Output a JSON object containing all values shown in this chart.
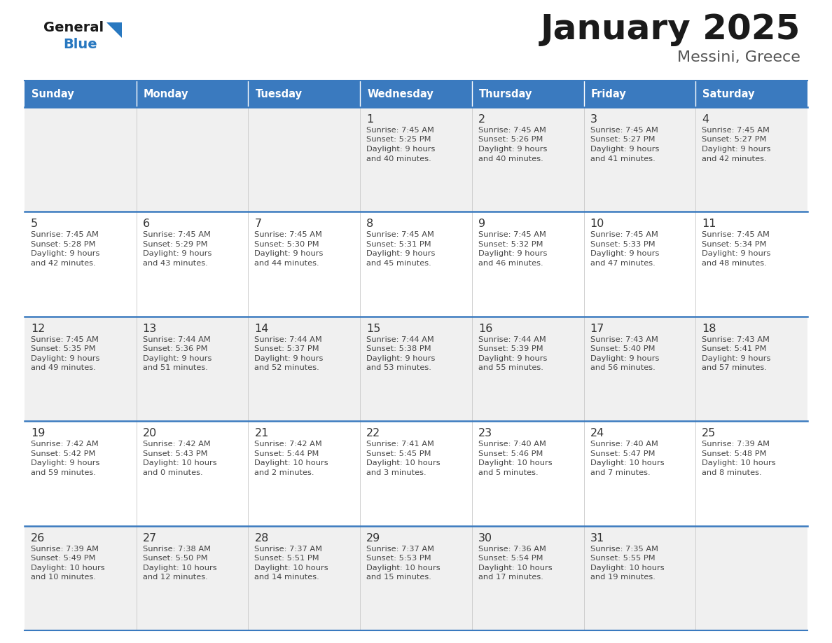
{
  "title": "January 2025",
  "subtitle": "Messini, Greece",
  "days_of_week": [
    "Sunday",
    "Monday",
    "Tuesday",
    "Wednesday",
    "Thursday",
    "Friday",
    "Saturday"
  ],
  "header_bg": "#3a7abf",
  "header_text": "#ffffff",
  "row_bg_even": "#f0f0f0",
  "row_bg_odd": "#ffffff",
  "cell_text_color": "#444444",
  "day_num_color": "#333333",
  "border_color": "#3a7abf",
  "title_color": "#1a1a1a",
  "subtitle_color": "#555555",
  "logo_general_color": "#1a1a1a",
  "logo_blue_color": "#2878c0",
  "calendar_data": [
    [
      null,
      null,
      null,
      {
        "day": 1,
        "sunrise": "7:45 AM",
        "sunset": "5:25 PM",
        "daylight_h": "9 hours",
        "daylight_m": "and 40 minutes."
      },
      {
        "day": 2,
        "sunrise": "7:45 AM",
        "sunset": "5:26 PM",
        "daylight_h": "9 hours",
        "daylight_m": "and 40 minutes."
      },
      {
        "day": 3,
        "sunrise": "7:45 AM",
        "sunset": "5:27 PM",
        "daylight_h": "9 hours",
        "daylight_m": "and 41 minutes."
      },
      {
        "day": 4,
        "sunrise": "7:45 AM",
        "sunset": "5:27 PM",
        "daylight_h": "9 hours",
        "daylight_m": "and 42 minutes."
      }
    ],
    [
      {
        "day": 5,
        "sunrise": "7:45 AM",
        "sunset": "5:28 PM",
        "daylight_h": "9 hours",
        "daylight_m": "and 42 minutes."
      },
      {
        "day": 6,
        "sunrise": "7:45 AM",
        "sunset": "5:29 PM",
        "daylight_h": "9 hours",
        "daylight_m": "and 43 minutes."
      },
      {
        "day": 7,
        "sunrise": "7:45 AM",
        "sunset": "5:30 PM",
        "daylight_h": "9 hours",
        "daylight_m": "and 44 minutes."
      },
      {
        "day": 8,
        "sunrise": "7:45 AM",
        "sunset": "5:31 PM",
        "daylight_h": "9 hours",
        "daylight_m": "and 45 minutes."
      },
      {
        "day": 9,
        "sunrise": "7:45 AM",
        "sunset": "5:32 PM",
        "daylight_h": "9 hours",
        "daylight_m": "and 46 minutes."
      },
      {
        "day": 10,
        "sunrise": "7:45 AM",
        "sunset": "5:33 PM",
        "daylight_h": "9 hours",
        "daylight_m": "and 47 minutes."
      },
      {
        "day": 11,
        "sunrise": "7:45 AM",
        "sunset": "5:34 PM",
        "daylight_h": "9 hours",
        "daylight_m": "and 48 minutes."
      }
    ],
    [
      {
        "day": 12,
        "sunrise": "7:45 AM",
        "sunset": "5:35 PM",
        "daylight_h": "9 hours",
        "daylight_m": "and 49 minutes."
      },
      {
        "day": 13,
        "sunrise": "7:44 AM",
        "sunset": "5:36 PM",
        "daylight_h": "9 hours",
        "daylight_m": "and 51 minutes."
      },
      {
        "day": 14,
        "sunrise": "7:44 AM",
        "sunset": "5:37 PM",
        "daylight_h": "9 hours",
        "daylight_m": "and 52 minutes."
      },
      {
        "day": 15,
        "sunrise": "7:44 AM",
        "sunset": "5:38 PM",
        "daylight_h": "9 hours",
        "daylight_m": "and 53 minutes."
      },
      {
        "day": 16,
        "sunrise": "7:44 AM",
        "sunset": "5:39 PM",
        "daylight_h": "9 hours",
        "daylight_m": "and 55 minutes."
      },
      {
        "day": 17,
        "sunrise": "7:43 AM",
        "sunset": "5:40 PM",
        "daylight_h": "9 hours",
        "daylight_m": "and 56 minutes."
      },
      {
        "day": 18,
        "sunrise": "7:43 AM",
        "sunset": "5:41 PM",
        "daylight_h": "9 hours",
        "daylight_m": "and 57 minutes."
      }
    ],
    [
      {
        "day": 19,
        "sunrise": "7:42 AM",
        "sunset": "5:42 PM",
        "daylight_h": "9 hours",
        "daylight_m": "and 59 minutes."
      },
      {
        "day": 20,
        "sunrise": "7:42 AM",
        "sunset": "5:43 PM",
        "daylight_h": "10 hours",
        "daylight_m": "and 0 minutes."
      },
      {
        "day": 21,
        "sunrise": "7:42 AM",
        "sunset": "5:44 PM",
        "daylight_h": "10 hours",
        "daylight_m": "and 2 minutes."
      },
      {
        "day": 22,
        "sunrise": "7:41 AM",
        "sunset": "5:45 PM",
        "daylight_h": "10 hours",
        "daylight_m": "and 3 minutes."
      },
      {
        "day": 23,
        "sunrise": "7:40 AM",
        "sunset": "5:46 PM",
        "daylight_h": "10 hours",
        "daylight_m": "and 5 minutes."
      },
      {
        "day": 24,
        "sunrise": "7:40 AM",
        "sunset": "5:47 PM",
        "daylight_h": "10 hours",
        "daylight_m": "and 7 minutes."
      },
      {
        "day": 25,
        "sunrise": "7:39 AM",
        "sunset": "5:48 PM",
        "daylight_h": "10 hours",
        "daylight_m": "and 8 minutes."
      }
    ],
    [
      {
        "day": 26,
        "sunrise": "7:39 AM",
        "sunset": "5:49 PM",
        "daylight_h": "10 hours",
        "daylight_m": "and 10 minutes."
      },
      {
        "day": 27,
        "sunrise": "7:38 AM",
        "sunset": "5:50 PM",
        "daylight_h": "10 hours",
        "daylight_m": "and 12 minutes."
      },
      {
        "day": 28,
        "sunrise": "7:37 AM",
        "sunset": "5:51 PM",
        "daylight_h": "10 hours",
        "daylight_m": "and 14 minutes."
      },
      {
        "day": 29,
        "sunrise": "7:37 AM",
        "sunset": "5:53 PM",
        "daylight_h": "10 hours",
        "daylight_m": "and 15 minutes."
      },
      {
        "day": 30,
        "sunrise": "7:36 AM",
        "sunset": "5:54 PM",
        "daylight_h": "10 hours",
        "daylight_m": "and 17 minutes."
      },
      {
        "day": 31,
        "sunrise": "7:35 AM",
        "sunset": "5:55 PM",
        "daylight_h": "10 hours",
        "daylight_m": "and 19 minutes."
      },
      null
    ]
  ]
}
